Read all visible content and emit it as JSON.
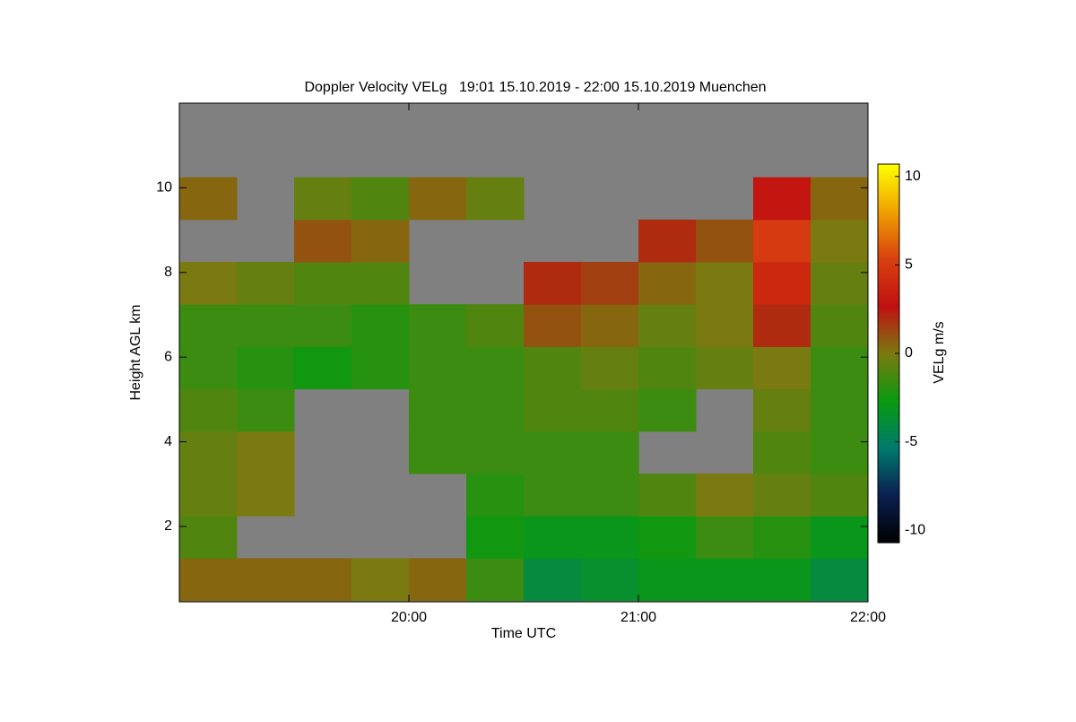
{
  "chart_data": {
    "type": "heatmap",
    "title": "Doppler Velocity VELg   19:01 15.10.2019 - 22:00 15.10.2019 Muenchen",
    "xlabel": "Time UTC",
    "ylabel": "Height AGL km",
    "colorbar_label": "VELg m/s",
    "xlim": [
      19,
      22
    ],
    "ylim": [
      0.22,
      12
    ],
    "xticks": [
      {
        "value": 20,
        "label": "20:00"
      },
      {
        "value": 21,
        "label": "21:00"
      },
      {
        "value": 22,
        "label": "22:00"
      }
    ],
    "yticks": [
      2,
      4,
      6,
      8,
      10
    ],
    "clim": [
      -10.7,
      10.7
    ],
    "cticks": [
      -10,
      -5,
      0,
      5,
      10
    ],
    "colormap": [
      "#000000",
      "#0a1e50",
      "#007a6e",
      "#0a9a10",
      "#7a7a10",
      "#c01010",
      "#d84010",
      "#f0a000",
      "#ffff00"
    ],
    "missing_color": "#808080",
    "x": [
      19.125,
      19.375,
      19.625,
      19.875,
      20.125,
      20.375,
      20.625,
      20.875,
      21.125,
      21.375,
      21.625,
      21.875
    ],
    "y": [
      0.75,
      1.75,
      2.75,
      3.75,
      4.75,
      5.75,
      6.75,
      7.75,
      8.75,
      9.75,
      10.75,
      11.75
    ],
    "z": [
      [
        0.5,
        0.5,
        0.5,
        0,
        0.5,
        -1.5,
        -4,
        -3.5,
        -3,
        -3,
        -3,
        -4
      ],
      [
        -1,
        null,
        null,
        null,
        null,
        -2.5,
        -3,
        -3,
        -2.5,
        -1.5,
        -2,
        -3
      ],
      [
        -0.5,
        0,
        null,
        null,
        null,
        -2,
        -1.5,
        -1.5,
        -1,
        0,
        -0.5,
        -1
      ],
      [
        -0.5,
        0,
        null,
        null,
        -1.5,
        -1.5,
        -1.5,
        -1.5,
        null,
        null,
        -1,
        -1.5
      ],
      [
        -1,
        -1.5,
        null,
        null,
        -1.5,
        -1.5,
        -1,
        -1,
        -1.5,
        null,
        -0.5,
        -1.5
      ],
      [
        -1.5,
        -2,
        -2.5,
        -2,
        -1.5,
        -1.5,
        -1,
        -0.5,
        -1,
        -0.5,
        0,
        -1.5
      ],
      [
        -1.5,
        -1.5,
        -1.5,
        -2,
        -1.5,
        -1,
        1,
        0.5,
        -0.5,
        0,
        2,
        -1
      ],
      [
        0,
        -0.5,
        -1,
        -1,
        null,
        null,
        2,
        1.5,
        0.5,
        0,
        4,
        -0.5
      ],
      [
        null,
        null,
        1,
        0.5,
        null,
        null,
        null,
        null,
        2,
        1,
        5,
        0
      ],
      [
        0.5,
        null,
        -0.5,
        -1,
        0.5,
        -0.5,
        null,
        null,
        null,
        null,
        3,
        0.5
      ],
      [
        null,
        null,
        null,
        null,
        null,
        null,
        null,
        null,
        null,
        null,
        null,
        null
      ],
      [
        null,
        null,
        null,
        null,
        null,
        null,
        null,
        null,
        null,
        null,
        null,
        null
      ]
    ]
  }
}
